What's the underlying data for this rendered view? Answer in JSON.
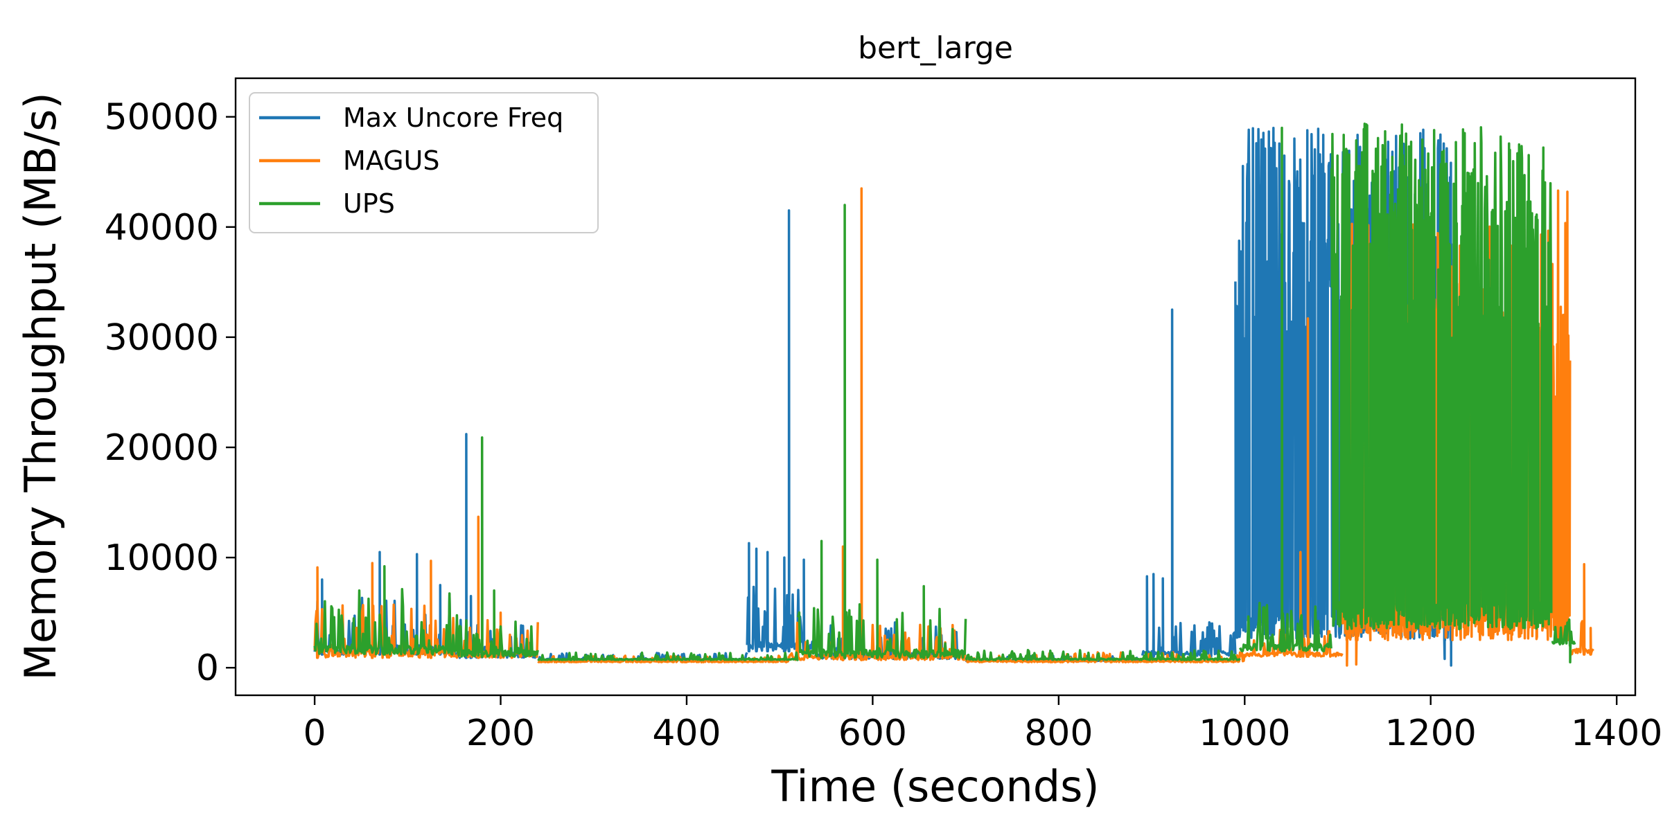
{
  "chart_data": {
    "type": "line",
    "title": "bert_large",
    "xlabel": "Time (seconds)",
    "ylabel": "Memory Throughput (MB/s)",
    "xlim": [
      -85,
      1420
    ],
    "ylim": [
      -2500,
      53500
    ],
    "xticks": [
      0,
      200,
      400,
      600,
      800,
      1000,
      1200,
      1400
    ],
    "yticks": [
      0,
      10000,
      20000,
      30000,
      40000,
      50000
    ],
    "xtick_labels": [
      "0",
      "200",
      "400",
      "600",
      "800",
      "1000",
      "1200",
      "1400"
    ],
    "ytick_labels": [
      "0",
      "10000",
      "20000",
      "30000",
      "40000",
      "50000"
    ],
    "grid": false,
    "legend_position": "upper-left",
    "series": [
      {
        "name": "Max Uncore Freq",
        "color": "#1f77b4",
        "segments": [
          {
            "x0": 0,
            "x1": 150,
            "base": 1200,
            "amp": 5500,
            "spikes": [
              [
                8,
                8000
              ],
              [
                70,
                10500
              ],
              [
                110,
                10300
              ],
              [
                135,
                7500
              ]
            ]
          },
          {
            "x0": 150,
            "x1": 240,
            "base": 900,
            "amp": 3500,
            "spikes": [
              [
                163,
                21200
              ],
              [
                168,
                6500
              ]
            ]
          },
          {
            "x0": 240,
            "x1": 465,
            "base": 700,
            "amp": 700,
            "spikes": []
          },
          {
            "x0": 465,
            "x1": 540,
            "base": 1500,
            "amp": 6000,
            "spikes": [
              [
                467,
                11300
              ],
              [
                475,
                10800
              ],
              [
                487,
                10500
              ],
              [
                505,
                10000
              ],
              [
                510,
                41500
              ],
              [
                526,
                9800
              ]
            ]
          },
          {
            "x0": 540,
            "x1": 700,
            "base": 800,
            "amp": 3500,
            "spikes": []
          },
          {
            "x0": 700,
            "x1": 890,
            "base": 600,
            "amp": 500,
            "spikes": []
          },
          {
            "x0": 890,
            "x1": 990,
            "base": 1000,
            "amp": 3500,
            "spikes": [
              [
                895,
                8300
              ],
              [
                902,
                8500
              ],
              [
                912,
                8100
              ],
              [
                922,
                32500
              ]
            ]
          },
          {
            "x0": 990,
            "x1": 1225,
            "base": 2500,
            "amp": 46500,
            "dense": true,
            "spikes": [
              [
                1215,
                800
              ],
              [
                1222,
                200
              ]
            ]
          }
        ]
      },
      {
        "name": "MAGUS",
        "color": "#ff7f0e",
        "segments": [
          {
            "x0": 0,
            "x1": 150,
            "base": 900,
            "amp": 5000,
            "spikes": [
              [
                3,
                9100
              ],
              [
                62,
                9500
              ],
              [
                125,
                9700
              ]
            ]
          },
          {
            "x0": 150,
            "x1": 240,
            "base": 900,
            "amp": 3500,
            "spikes": [
              [
                176,
                13700
              ],
              [
                200,
                5000
              ]
            ]
          },
          {
            "x0": 240,
            "x1": 510,
            "base": 500,
            "amp": 600,
            "spikes": []
          },
          {
            "x0": 510,
            "x1": 700,
            "base": 700,
            "amp": 3500,
            "spikes": [
              [
                568,
                11000
              ],
              [
                588,
                43500
              ]
            ]
          },
          {
            "x0": 700,
            "x1": 1000,
            "base": 500,
            "amp": 900,
            "spikes": []
          },
          {
            "x0": 1000,
            "x1": 1105,
            "base": 1000,
            "amp": 2500,
            "spikes": [
              [
                1060,
                10500
              ],
              [
                1068,
                31700
              ]
            ]
          },
          {
            "x0": 1105,
            "x1": 1350,
            "base": 2500,
            "amp": 38000,
            "dense": true,
            "spikes": [
              [
                1110,
                200
              ],
              [
                1120,
                300
              ],
              [
                1337,
                43300
              ],
              [
                1342,
                32000
              ],
              [
                1347,
                43200
              ]
            ]
          },
          {
            "x0": 1350,
            "x1": 1375,
            "base": 1200,
            "amp": 3500,
            "spikes": [
              [
                1365,
                9400
              ],
              [
                1372,
                3600
              ]
            ]
          }
        ]
      },
      {
        "name": "UPS",
        "color": "#2ca02c",
        "segments": [
          {
            "x0": 0,
            "x1": 150,
            "base": 1200,
            "amp": 6000,
            "spikes": [
              [
                75,
                9200
              ]
            ]
          },
          {
            "x0": 150,
            "x1": 240,
            "base": 1000,
            "amp": 4000,
            "spikes": [
              [
                180,
                20900
              ],
              [
                193,
                7000
              ]
            ]
          },
          {
            "x0": 240,
            "x1": 520,
            "base": 700,
            "amp": 700,
            "spikes": []
          },
          {
            "x0": 520,
            "x1": 700,
            "base": 900,
            "amp": 5000,
            "spikes": [
              [
                545,
                11500
              ],
              [
                570,
                42000
              ],
              [
                605,
                9800
              ],
              [
                655,
                7400
              ]
            ]
          },
          {
            "x0": 700,
            "x1": 995,
            "base": 700,
            "amp": 900,
            "spikes": []
          },
          {
            "x0": 995,
            "x1": 1093,
            "base": 1500,
            "amp": 4500,
            "spikes": [
              [
                1040,
                49000
              ]
            ]
          },
          {
            "x0": 1093,
            "x1": 1330,
            "base": 3500,
            "amp": 46000,
            "dense": true,
            "spikes": []
          },
          {
            "x0": 1330,
            "x1": 1355,
            "base": 2000,
            "amp": 2500,
            "spikes": [
              [
                1350,
                500
              ]
            ]
          }
        ]
      }
    ]
  }
}
